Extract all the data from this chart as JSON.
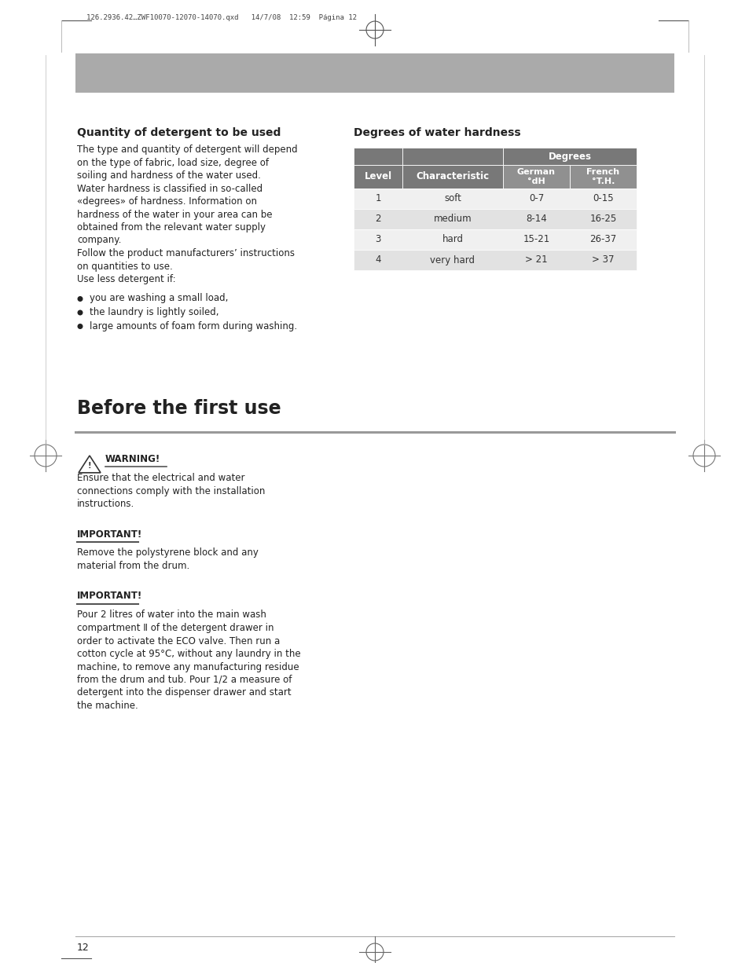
{
  "page_header": "126.2936.42…ZWF10070-12070-14070.qxd   14/7/08  12:59  Página 12",
  "gray_bar_color": "#aaaaaa",
  "section1_title": "Quantity of detergent to be used",
  "section1_body": [
    "The type and quantity of detergent will depend",
    "on the type of fabric, load size, degree of",
    "soiling and hardness of the water used.",
    "Water hardness is classified in so-called",
    "«degrees» of hardness. Information on",
    "hardness of the water in your area can be",
    "obtained from the relevant water supply",
    "company.",
    "Follow the product manufacturers’ instructions",
    "on quantities to use.",
    "Use less detergent if:"
  ],
  "bullet_items": [
    "you are washing a small load,",
    "the laundry is lightly soiled,",
    "large amounts of foam form during washing."
  ],
  "section2_title": "Degrees of water hardness",
  "table_header_bg": "#787878",
  "table_subheader_bg": "#909090",
  "table_row_bg_1": "#f0f0f0",
  "table_row_bg_2": "#e2e2e2",
  "table_col1_header": "Level",
  "table_col2_header": "Characteristic",
  "table_col3_header": "Degrees",
  "table_col3a_header": "German\n°dH",
  "table_col3b_header": "French\n°T.H.",
  "table_data": [
    [
      "1",
      "soft",
      "0-7",
      "0-15"
    ],
    [
      "2",
      "medium",
      "8-14",
      "16-25"
    ],
    [
      "3",
      "hard",
      "15-21",
      "26-37"
    ],
    [
      "4",
      "very hard",
      "> 21",
      "> 37"
    ]
  ],
  "section3_title": "Before the first use",
  "warning_title": "WARNING!",
  "warning_body": "Ensure that the electrical and water\nconnections comply with the installation\ninstructions.",
  "important1_title": "IMPORTANT!",
  "important1_body": "Remove the polystyrene block and any\nmaterial from the drum.",
  "important2_title": "IMPORTANT!",
  "important2_body": "Pour 2 litres of water into the main wash\ncompartment Ⅱ of the detergent drawer in\norder to activate the ECO valve. Then run a\ncotton cycle at 95°C, without any laundry in the\nmachine, to remove any manufacturing residue\nfrom the drum and tub. Pour 1/2 a measure of\ndetergent into the dispenser drawer and start\nthe machine.",
  "page_number": "12",
  "bg_color": "#ffffff",
  "text_color": "#222222"
}
